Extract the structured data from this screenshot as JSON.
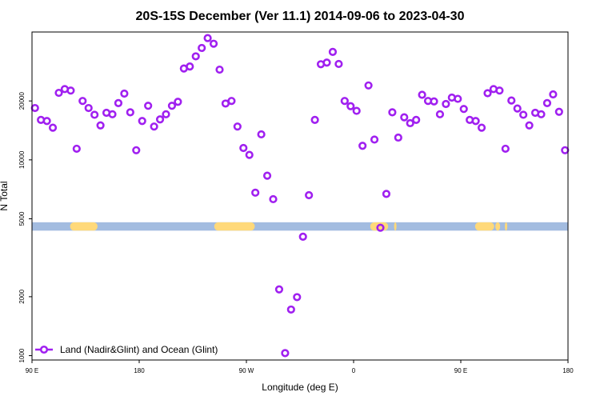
{
  "chart_data": {
    "type": "scatter",
    "title": "20S-15S December (Ver 11.1)   2014-09-06 to 2023-04-30",
    "xlabel": "Longitude (deg E)",
    "ylabel": "N Total",
    "x_ticks": [
      {
        "value": 90,
        "label": "90 E"
      },
      {
        "value": 180,
        "label": "180"
      },
      {
        "value": 270,
        "label": "90 W"
      },
      {
        "value": 360,
        "label": "0"
      },
      {
        "value": 450,
        "label": "90 E"
      },
      {
        "value": 540,
        "label": "180"
      }
    ],
    "y_ticks": [
      {
        "value": 1000,
        "label": "1000"
      },
      {
        "value": 2000,
        "label": "2000"
      },
      {
        "value": 5000,
        "label": "5000"
      },
      {
        "value": 10000,
        "label": "10000"
      },
      {
        "value": 20000,
        "label": "20000"
      }
    ],
    "xlim": [
      90,
      540
    ],
    "ylim": [
      950,
      45000
    ],
    "y_scale": "log",
    "legend": {
      "label": "Land (Nadir&Glint) and Ocean (Glint)",
      "position": "bottom-left"
    },
    "colors": {
      "points": "#a020f0",
      "ocean": "#a3bce0",
      "land": "#ffd97a"
    },
    "surface_strip": {
      "y_range": [
        4350,
        4800
      ],
      "land_segments": [
        [
          122,
          145
        ],
        [
          243,
          277
        ],
        [
          374,
          389
        ],
        [
          394,
          396
        ],
        [
          462,
          478
        ],
        [
          479,
          483
        ],
        [
          487,
          489
        ]
      ]
    },
    "series": [
      {
        "name": "Land (Nadir&Glint) and Ocean (Glint)",
        "x": [
          92.5,
          97.5,
          102.5,
          107.5,
          112.5,
          117.5,
          122.5,
          127.5,
          132.5,
          137.5,
          142.5,
          147.5,
          152.5,
          157.5,
          162.5,
          167.5,
          172.5,
          177.5,
          182.5,
          187.5,
          192.5,
          197.5,
          202.5,
          207.5,
          212.5,
          217.5,
          222.5,
          227.5,
          232.5,
          237.5,
          242.5,
          247.5,
          252.5,
          257.5,
          262.5,
          267.5,
          272.5,
          277.5,
          282.5,
          287.5,
          292.5,
          297.5,
          302.5,
          307.5,
          312.5,
          317.5,
          322.5,
          327.5,
          332.5,
          337.5,
          342.5,
          347.5,
          352.5,
          357.5,
          362.5,
          367.5,
          372.5,
          377.5,
          382.5,
          387.5,
          392.5,
          397.5,
          402.5,
          407.5,
          412.5,
          417.5,
          422.5,
          427.5,
          432.5,
          437.5,
          442.5,
          447.5,
          452.5,
          457.5,
          462.5,
          467.5,
          472.5,
          477.5,
          482.5,
          487.5,
          492.5,
          497.5,
          502.5,
          507.5,
          512.5,
          517.5,
          522.5,
          527.5,
          532.5,
          537.5
        ],
        "y": [
          18400,
          16000,
          15800,
          14600,
          22000,
          23000,
          22600,
          11400,
          20000,
          18400,
          17000,
          15000,
          17400,
          17100,
          19500,
          21800,
          17500,
          11200,
          15800,
          18900,
          14800,
          16100,
          17100,
          18900,
          19800,
          29300,
          30000,
          33800,
          37300,
          41900,
          39200,
          28900,
          19400,
          20000,
          14800,
          11500,
          10600,
          6800,
          13500,
          8300,
          6300,
          2180,
          1030,
          1720,
          1990,
          4050,
          6600,
          16000,
          30800,
          31400,
          35600,
          30900,
          20000,
          18800,
          17800,
          11800,
          24000,
          12700,
          4500,
          6700,
          17500,
          13000,
          16500,
          15400,
          16000,
          21500,
          20000,
          19900,
          17100,
          19300,
          20800,
          20500,
          18200,
          16000,
          15800,
          14600,
          21900,
          23000,
          22600,
          11400,
          20100,
          18300,
          17000,
          15000,
          17400,
          17100,
          19500,
          21600,
          17600,
          11200
        ]
      }
    ]
  }
}
